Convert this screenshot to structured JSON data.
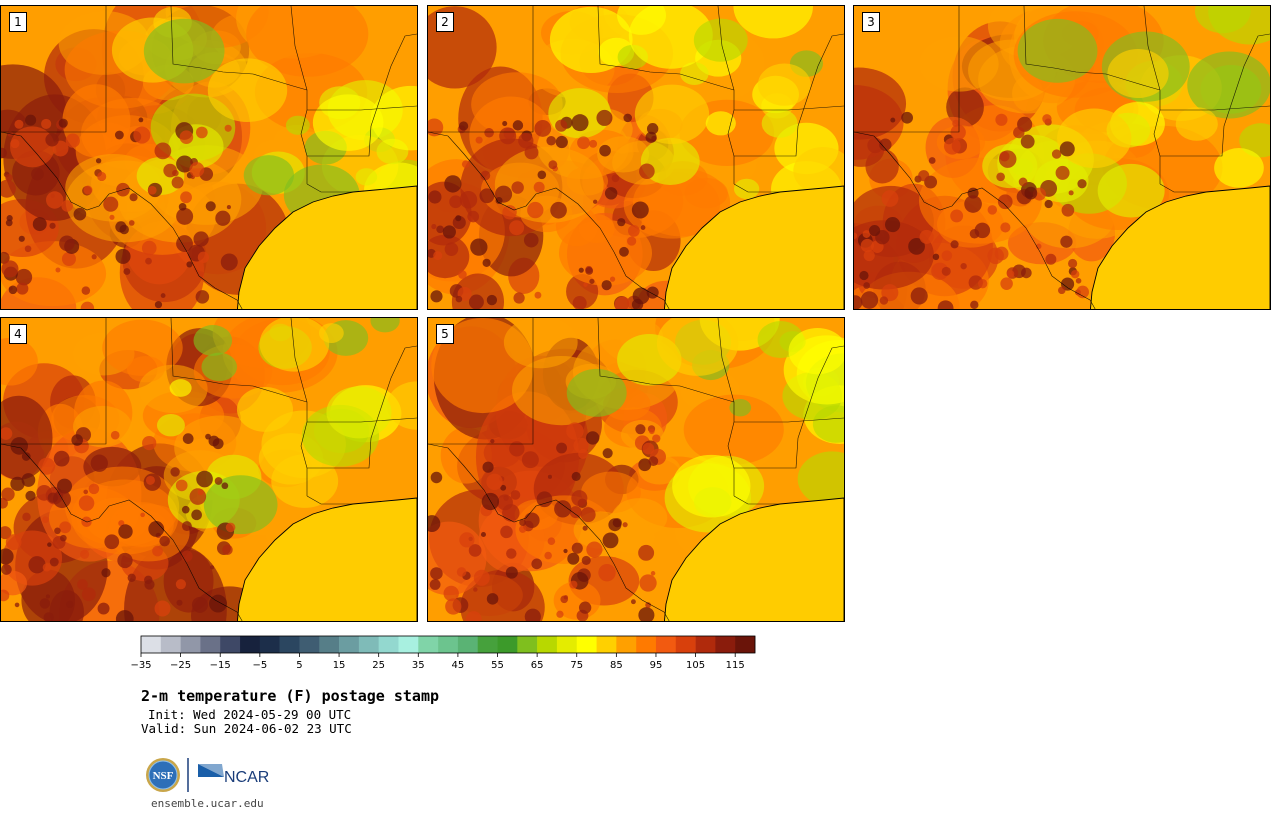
{
  "chart_data": {
    "type": "heatmap",
    "title": "2-m temperature (F) postage stamp",
    "init": "Init: Wed 2024-05-29 00 UTC",
    "valid": "Valid: Sun 2024-06-02 23 UTC",
    "panels": [
      {
        "label": "1"
      },
      {
        "label": "2"
      },
      {
        "label": "3"
      },
      {
        "label": "4"
      },
      {
        "label": "5"
      }
    ],
    "colorbar": {
      "bounds": [
        -35,
        -30,
        -25,
        -20,
        -15,
        -10,
        -5,
        0,
        5,
        10,
        15,
        20,
        25,
        30,
        35,
        40,
        45,
        50,
        55,
        60,
        65,
        70,
        75,
        80,
        85,
        90,
        95,
        100,
        105,
        110,
        115,
        120
      ],
      "tick_labels": [
        "−35",
        "−25",
        "−15",
        "−5",
        "5",
        "15",
        "25",
        "35",
        "45",
        "55",
        "65",
        "75",
        "85",
        "95",
        "105",
        "115"
      ],
      "colors": [
        "#dcdfe6",
        "#b8bcc8",
        "#9197a8",
        "#6a7188",
        "#3e4866",
        "#17223d",
        "#1c2e4a",
        "#2b4660",
        "#3f5d72",
        "#567e88",
        "#6b9da1",
        "#7fbbb8",
        "#93d8cf",
        "#a8f0e0",
        "#80d4a8",
        "#6cc48e",
        "#5ab374",
        "#46a13c",
        "#3c9a2a",
        "#7fbf1e",
        "#b8d800",
        "#e4ec00",
        "#ffff00",
        "#ffd000",
        "#ffa000",
        "#ff7a00",
        "#f25a10",
        "#d8400c",
        "#b02a0c",
        "#8a1c0c",
        "#6a1409"
      ]
    }
  },
  "footer": {
    "logo_nsf": "NSF",
    "logo_ncar": "NCAR",
    "url": "ensemble.ucar.edu"
  }
}
